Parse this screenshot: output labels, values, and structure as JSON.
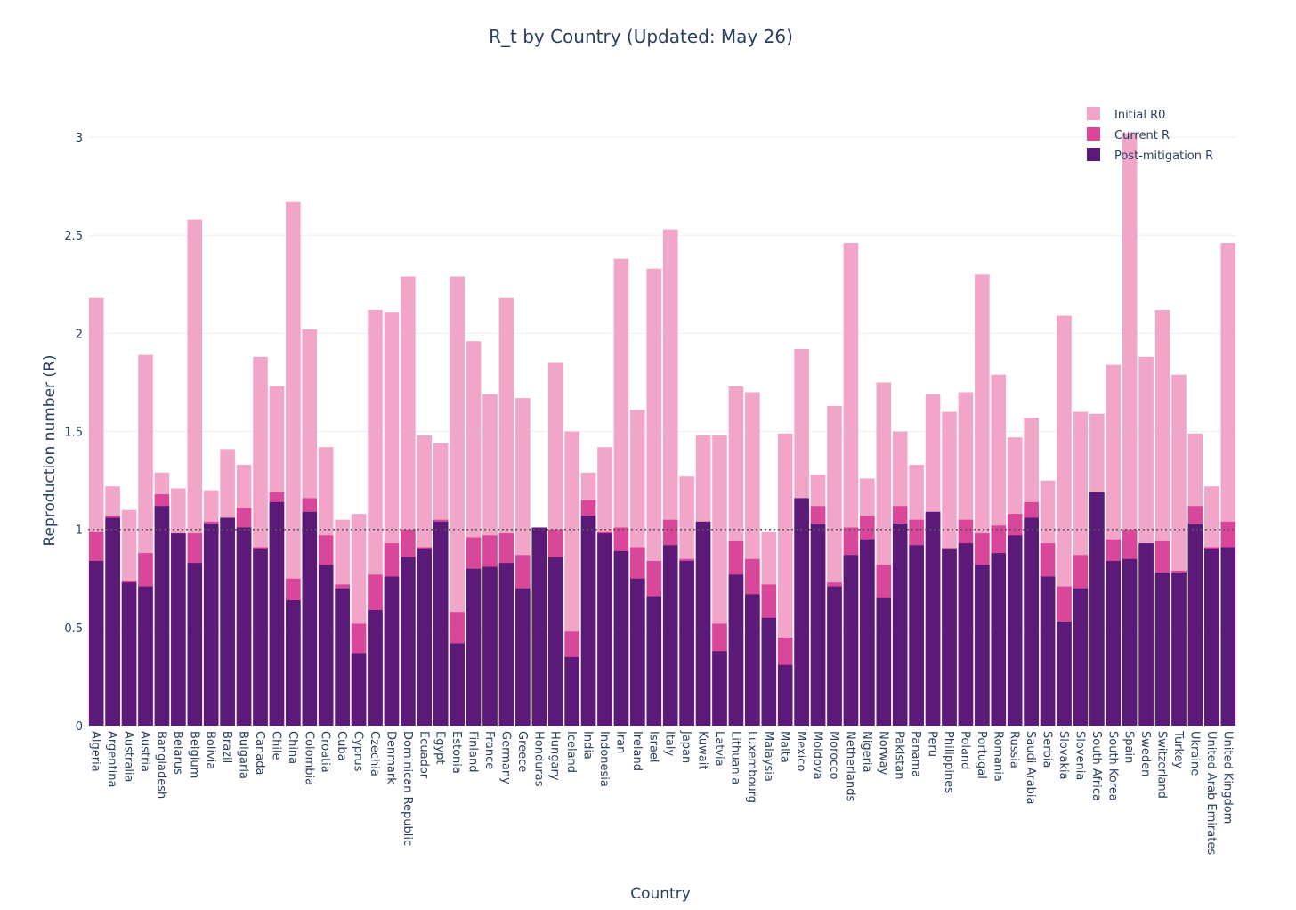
{
  "chart_data": {
    "type": "bar",
    "barmode": "overlay",
    "title": "R_t by Country (Updated: May 26)",
    "xlabel": "Country",
    "ylabel": "Reproduction number (R)",
    "ylim": [
      0,
      3.3
    ],
    "yticks": [
      0,
      0.5,
      1,
      1.5,
      2,
      2.5,
      3
    ],
    "ytick_labels": [
      "0",
      "0.5",
      "1",
      "1.5",
      "2",
      "2.5",
      "3"
    ],
    "grid": true,
    "legend_position": "top-right",
    "reference_line": {
      "y": 1,
      "style": "dotted"
    },
    "colors": {
      "initial": "#f1a6c9",
      "current": "#d8479a",
      "post": "#5c1a78",
      "refline": "#555555",
      "grid": "#ebeef3",
      "text": "#2a3f5f"
    },
    "categories": [
      "Algeria",
      "Argentina",
      "Australia",
      "Austria",
      "Bangladesh",
      "Belarus",
      "Belgium",
      "Bolivia",
      "Brazil",
      "Bulgaria",
      "Canada",
      "Chile",
      "China",
      "Colombia",
      "Croatia",
      "Cuba",
      "Cyprus",
      "Czechia",
      "Denmark",
      "Dominican Republic",
      "Ecuador",
      "Egypt",
      "Estonia",
      "Finland",
      "France",
      "Germany",
      "Greece",
      "Honduras",
      "Hungary",
      "Iceland",
      "India",
      "Indonesia",
      "Iran",
      "Ireland",
      "Israel",
      "Italy",
      "Japan",
      "Kuwait",
      "Latvia",
      "Lithuania",
      "Luxembourg",
      "Malaysia",
      "Malta",
      "Mexico",
      "Moldova",
      "Morocco",
      "Netherlands",
      "Nigeria",
      "Norway",
      "Pakistan",
      "Panama",
      "Peru",
      "Philippines",
      "Poland",
      "Portugal",
      "Romania",
      "Russia",
      "Saudi Arabia",
      "Serbia",
      "Slovakia",
      "Slovenia",
      "South Africa",
      "South Korea",
      "Spain",
      "Sweden",
      "Switzerland",
      "Turkey",
      "Ukraine",
      "United Arab Emirates",
      "United Kingdom"
    ],
    "series": [
      {
        "name": "Initial R0",
        "key": "initial",
        "values": [
          2.18,
          1.22,
          1.1,
          1.89,
          1.29,
          1.21,
          2.58,
          1.2,
          1.41,
          1.33,
          1.88,
          1.73,
          2.67,
          2.02,
          1.42,
          1.05,
          1.08,
          2.12,
          2.11,
          2.29,
          1.48,
          1.44,
          2.29,
          1.96,
          1.69,
          2.18,
          1.67,
          1.0,
          1.85,
          1.5,
          1.29,
          1.42,
          2.38,
          1.61,
          2.33,
          2.53,
          1.27,
          1.48,
          1.48,
          1.73,
          1.7,
          0.99,
          1.49,
          1.92,
          1.28,
          1.63,
          2.46,
          1.26,
          1.75,
          1.5,
          1.33,
          1.69,
          1.6,
          1.7,
          2.3,
          1.79,
          1.47,
          1.57,
          1.25,
          2.09,
          1.6,
          1.59,
          1.84,
          3.02,
          1.88,
          2.12,
          1.79,
          1.49,
          1.22,
          2.46
        ]
      },
      {
        "name": "Current R",
        "key": "current",
        "values": [
          0.99,
          1.07,
          0.74,
          0.88,
          1.18,
          0.98,
          0.98,
          1.04,
          1.06,
          1.11,
          0.91,
          1.19,
          0.75,
          1.16,
          0.97,
          0.72,
          0.52,
          0.77,
          0.93,
          1.0,
          0.91,
          1.05,
          0.58,
          0.96,
          0.97,
          0.98,
          0.87,
          1.01,
          1.0,
          0.48,
          1.15,
          0.99,
          1.01,
          0.91,
          0.84,
          1.05,
          0.85,
          1.04,
          0.52,
          0.94,
          0.85,
          0.72,
          0.45,
          1.16,
          1.12,
          0.73,
          1.01,
          1.07,
          0.82,
          1.12,
          1.05,
          1.09,
          0.9,
          1.05,
          0.98,
          1.02,
          1.08,
          1.14,
          0.93,
          0.71,
          0.87,
          1.19,
          0.95,
          1.0,
          0.93,
          0.94,
          0.79,
          1.12,
          0.91,
          1.04
        ]
      },
      {
        "name": "Post-mitigation R",
        "key": "post",
        "values": [
          0.84,
          1.06,
          0.73,
          0.71,
          1.12,
          0.98,
          0.83,
          1.03,
          1.06,
          1.01,
          0.9,
          1.14,
          0.64,
          1.09,
          0.82,
          0.7,
          0.37,
          0.59,
          0.76,
          0.86,
          0.9,
          1.04,
          0.42,
          0.8,
          0.81,
          0.83,
          0.7,
          1.01,
          0.86,
          0.35,
          1.07,
          0.98,
          0.89,
          0.75,
          0.66,
          0.92,
          0.84,
          1.04,
          0.38,
          0.77,
          0.67,
          0.55,
          0.31,
          1.16,
          1.03,
          0.71,
          0.87,
          0.95,
          0.65,
          1.03,
          0.92,
          1.09,
          0.9,
          0.93,
          0.82,
          0.88,
          0.97,
          1.06,
          0.76,
          0.53,
          0.7,
          1.19,
          0.84,
          0.85,
          0.93,
          0.78,
          0.78,
          1.03,
          0.9,
          0.91
        ]
      }
    ]
  }
}
